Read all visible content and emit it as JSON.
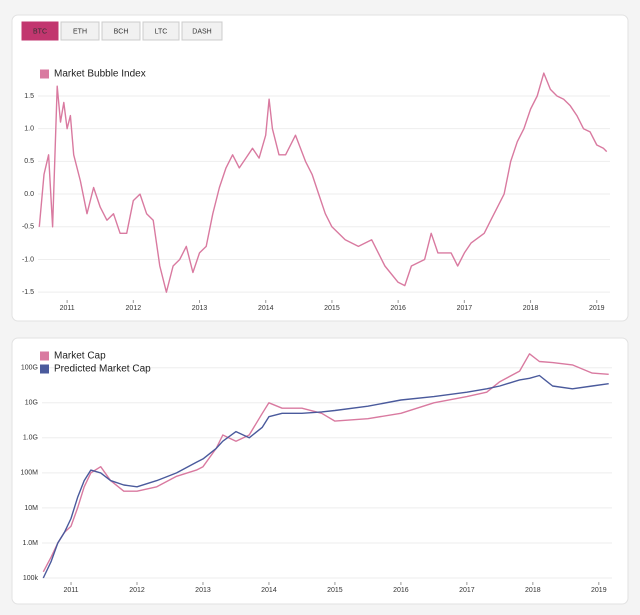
{
  "tabs": [
    "BTC",
    "ETH",
    "BCH",
    "LTC",
    "DASH"
  ],
  "active_tab": 0,
  "chart_data": [
    {
      "type": "line",
      "log_y": false,
      "xlim": [
        2010.56,
        2019.2
      ],
      "xticks": [
        2011,
        2012,
        2013,
        2014,
        2015,
        2016,
        2017,
        2018,
        2019
      ],
      "ylim": [
        -1.62,
        2.05
      ],
      "yticks": [
        -1.5,
        {
          "value": -1,
          "label": "-1.0"
        },
        -0.5,
        {
          "value": 0,
          "label": "0.0"
        },
        0.5,
        {
          "value": 1,
          "label": "1.0"
        },
        1.5
      ],
      "x": [
        2010.58,
        2010.65,
        2010.72,
        2010.78,
        2010.85,
        2010.9,
        2010.95,
        2011.0,
        2011.05,
        2011.1,
        2011.2,
        2011.3,
        2011.4,
        2011.5,
        2011.6,
        2011.7,
        2011.8,
        2011.9,
        2012.0,
        2012.1,
        2012.2,
        2012.3,
        2012.4,
        2012.5,
        2012.6,
        2012.7,
        2012.8,
        2012.9,
        2013.0,
        2013.1,
        2013.2,
        2013.3,
        2013.4,
        2013.5,
        2013.6,
        2013.7,
        2013.8,
        2013.9,
        2014.0,
        2014.05,
        2014.1,
        2014.2,
        2014.3,
        2014.45,
        2014.6,
        2014.7,
        2014.8,
        2014.9,
        2015.0,
        2015.2,
        2015.4,
        2015.6,
        2015.8,
        2016.0,
        2016.1,
        2016.2,
        2016.4,
        2016.5,
        2016.6,
        2016.8,
        2016.9,
        2017.0,
        2017.1,
        2017.3,
        2017.4,
        2017.5,
        2017.6,
        2017.7,
        2017.8,
        2017.9,
        2018.0,
        2018.1,
        2018.2,
        2018.3,
        2018.4,
        2018.5,
        2018.6,
        2018.7,
        2018.8,
        2018.9,
        2019.0,
        2019.1,
        2019.15
      ],
      "series": [
        {
          "name": "Market Bubble Index",
          "color": "#d97aa0",
          "values": [
            -0.5,
            0.3,
            0.6,
            -0.5,
            1.65,
            1.1,
            1.4,
            1.0,
            1.2,
            0.6,
            0.2,
            -0.3,
            0.1,
            -0.2,
            -0.4,
            -0.3,
            -0.6,
            -0.6,
            -0.1,
            0.0,
            -0.3,
            -0.4,
            -1.1,
            -1.5,
            -1.1,
            -1.0,
            -0.8,
            -1.2,
            -0.9,
            -0.8,
            -0.3,
            0.1,
            0.4,
            0.6,
            0.4,
            0.55,
            0.7,
            0.55,
            0.9,
            1.45,
            1.0,
            0.6,
            0.6,
            0.9,
            0.5,
            0.3,
            0.0,
            -0.3,
            -0.5,
            -0.7,
            -0.8,
            -0.7,
            -1.1,
            -1.35,
            -1.4,
            -1.1,
            -1.0,
            -0.6,
            -0.9,
            -0.9,
            -1.1,
            -0.9,
            -0.75,
            -0.6,
            -0.4,
            -0.2,
            0.0,
            0.5,
            0.8,
            1.0,
            1.3,
            1.5,
            1.85,
            1.6,
            1.5,
            1.45,
            1.35,
            1.2,
            1.0,
            0.95,
            0.75,
            0.7,
            0.65
          ]
        }
      ]
    },
    {
      "type": "line",
      "log_y": true,
      "xlim": [
        2010.56,
        2019.2
      ],
      "xticks": [
        2011,
        2012,
        2013,
        2014,
        2015,
        2016,
        2017,
        2018,
        2019
      ],
      "ylim": [
        77000,
        320000000000
      ],
      "yticks": [
        {
          "value": 100000,
          "label": "100k"
        },
        {
          "value": 1000000,
          "label": "1.0M"
        },
        {
          "value": 10000000,
          "label": "10M"
        },
        {
          "value": 100000000,
          "label": "100M"
        },
        {
          "value": 1000000000,
          "label": "1.0G"
        },
        {
          "value": 10000000000,
          "label": "10G"
        },
        {
          "value": 100000000000,
          "label": "100G"
        }
      ],
      "x": [
        2010.58,
        2010.7,
        2010.8,
        2010.9,
        2011.0,
        2011.1,
        2011.2,
        2011.3,
        2011.45,
        2011.6,
        2011.8,
        2012.0,
        2012.3,
        2012.6,
        2012.9,
        2013.0,
        2013.2,
        2013.3,
        2013.5,
        2013.7,
        2013.9,
        2014.0,
        2014.2,
        2014.5,
        2014.8,
        2015.0,
        2015.5,
        2016.0,
        2016.5,
        2017.0,
        2017.3,
        2017.5,
        2017.8,
        2017.95,
        2018.1,
        2018.3,
        2018.6,
        2018.9,
        2019.15
      ],
      "series": [
        {
          "name": "Market Cap",
          "color": "#d97aa0",
          "values": [
            150000,
            400000,
            1000000,
            2000000,
            3000000,
            10000000,
            40000000,
            100000000,
            150000000,
            60000000,
            30000000,
            30000000,
            40000000,
            80000000,
            120000000,
            150000000,
            500000000,
            1200000000,
            800000000,
            1200000000,
            5000000000,
            10000000000,
            7000000000,
            7000000000,
            5000000000,
            3000000000,
            3500000000,
            5000000000,
            10000000000,
            15000000000,
            20000000000,
            40000000000,
            80000000000,
            250000000000,
            150000000000,
            140000000000,
            120000000000,
            70000000000,
            65000000000
          ]
        },
        {
          "name": "Predicted Market Cap",
          "color": "#4a5a9c",
          "values": [
            100000,
            300000,
            1000000,
            2000000,
            5000000,
            20000000,
            60000000,
            120000000,
            100000000,
            60000000,
            45000000,
            40000000,
            60000000,
            100000000,
            200000000,
            250000000,
            500000000,
            800000000,
            1500000000,
            1000000000,
            2000000000,
            4000000000,
            5000000000,
            5000000000,
            5500000000,
            6000000000,
            8000000000,
            12000000000,
            15000000000,
            20000000000,
            25000000000,
            30000000000,
            45000000000,
            50000000000,
            60000000000,
            30000000000,
            25000000000,
            30000000000,
            35000000000
          ]
        }
      ]
    }
  ]
}
